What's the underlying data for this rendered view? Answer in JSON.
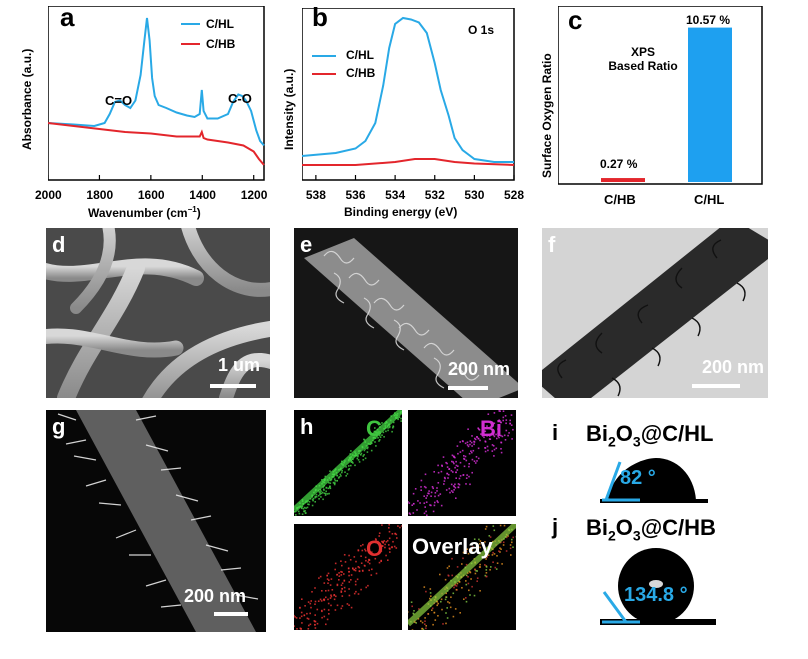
{
  "panel_a": {
    "letter": "a",
    "xlabel": "Wavenumber (cm",
    "xlabel_sup": "−1",
    "xlabel_close": ")",
    "ylabel": "Absorbance (a.u.)",
    "x_ticks": [
      "2000",
      "1800",
      "1600",
      "1400",
      "1200"
    ],
    "legend": [
      "C/HL",
      "C/HB"
    ],
    "annotations": [
      "C=O",
      "C-O"
    ],
    "colors": {
      "hl": "#29a9e6",
      "hb": "#e3262c"
    }
  },
  "panel_b": {
    "letter": "b",
    "title": "O 1s",
    "xlabel": "Binding energy (eV)",
    "ylabel": "Intensity (a.u.)",
    "x_ticks": [
      "538",
      "536",
      "534",
      "532",
      "530",
      "528"
    ],
    "legend": [
      "C/HL",
      "C/HB"
    ]
  },
  "panel_c": {
    "letter": "c",
    "ylabel": "Surface Oxygen Ratio",
    "note_line1": "XPS",
    "note_line2": "Based Ratio",
    "value_labels": [
      "0.27 %",
      "10.57 %"
    ]
  },
  "chart_data": [
    {
      "type": "line",
      "xlabel": "Wavenumber (cm−1)",
      "ylabel": "Absorbance (a.u.)",
      "xlim": [
        2000,
        1160
      ],
      "series": [
        {
          "name": "C/HL",
          "x": [
            2000,
            1900,
            1820,
            1780,
            1760,
            1740,
            1720,
            1700,
            1680,
            1660,
            1640,
            1625,
            1615,
            1605,
            1595,
            1585,
            1570,
            1540,
            1500,
            1460,
            1430,
            1410,
            1402,
            1395,
            1380,
            1340,
            1300,
            1280,
            1260,
            1245,
            1230,
            1210,
            1190,
            1175,
            1160
          ],
          "y": [
            0.3,
            0.29,
            0.28,
            0.3,
            0.36,
            0.44,
            0.45,
            0.42,
            0.4,
            0.45,
            0.62,
            0.85,
            1.0,
            0.85,
            0.6,
            0.48,
            0.42,
            0.4,
            0.37,
            0.35,
            0.34,
            0.36,
            0.52,
            0.38,
            0.33,
            0.33,
            0.36,
            0.44,
            0.49,
            0.48,
            0.45,
            0.38,
            0.25,
            0.18,
            0.15
          ]
        },
        {
          "name": "C/HB",
          "x": [
            2000,
            1900,
            1800,
            1700,
            1600,
            1500,
            1420,
            1410,
            1402,
            1395,
            1380,
            1300,
            1240,
            1200,
            1180,
            1160
          ],
          "y": [
            0.3,
            0.28,
            0.26,
            0.24,
            0.23,
            0.21,
            0.21,
            0.21,
            0.24,
            0.2,
            0.19,
            0.17,
            0.15,
            0.11,
            0.06,
            0.02
          ]
        }
      ]
    },
    {
      "type": "line",
      "xlabel": "Binding energy (eV)",
      "ylabel": "Intensity (a.u.)",
      "xlim": [
        538.7,
        528
      ],
      "series": [
        {
          "name": "C/HL",
          "x": [
            538.7,
            537,
            536,
            535.5,
            535,
            534.6,
            534.3,
            534,
            533.6,
            533.2,
            532.8,
            532.4,
            532,
            531.7,
            531.3,
            531,
            530.6,
            530.3,
            530,
            529,
            528
          ],
          "y": [
            0.08,
            0.1,
            0.13,
            0.18,
            0.3,
            0.55,
            0.8,
            0.96,
            1.0,
            0.99,
            0.97,
            0.9,
            0.7,
            0.52,
            0.35,
            0.2,
            0.12,
            0.09,
            0.06,
            0.04,
            0.04
          ]
        },
        {
          "name": "C/HB",
          "x": [
            538.7,
            536,
            534,
            533,
            532,
            531,
            530,
            528
          ],
          "y": [
            0.02,
            0.02,
            0.04,
            0.06,
            0.06,
            0.04,
            0.03,
            0.02
          ]
        }
      ]
    },
    {
      "type": "bar",
      "ylabel": "Surface Oxygen Ratio",
      "categories": [
        "C/HB",
        "C/HL"
      ],
      "values": [
        0.27,
        10.57
      ],
      "ylim": [
        0,
        11.5
      ]
    }
  ],
  "panel_d": {
    "letter": "d",
    "scale": "1 um"
  },
  "panel_e": {
    "letter": "e",
    "scale": "200 nm"
  },
  "panel_f": {
    "letter": "f",
    "scale": "200 nm"
  },
  "panel_g": {
    "letter": "g",
    "scale": "200 nm"
  },
  "panel_h": {
    "letter": "h",
    "maps": [
      "C",
      "Bi",
      "O",
      "Overlay"
    ],
    "map_colors": [
      "#3fc43f",
      "#d22ed2",
      "#e23030",
      "#ffffff"
    ]
  },
  "panel_i": {
    "letter": "i",
    "title_pre": "Bi",
    "title_sub": "2",
    "title_mid": "O",
    "title_sub2": "3",
    "title_post": "@C/HL",
    "angle": "82 °"
  },
  "panel_j": {
    "letter": "j",
    "title_pre": "Bi",
    "title_sub": "2",
    "title_mid": "O",
    "title_sub2": "3",
    "title_post": "@C/HB",
    "angle": "134.8 °"
  }
}
